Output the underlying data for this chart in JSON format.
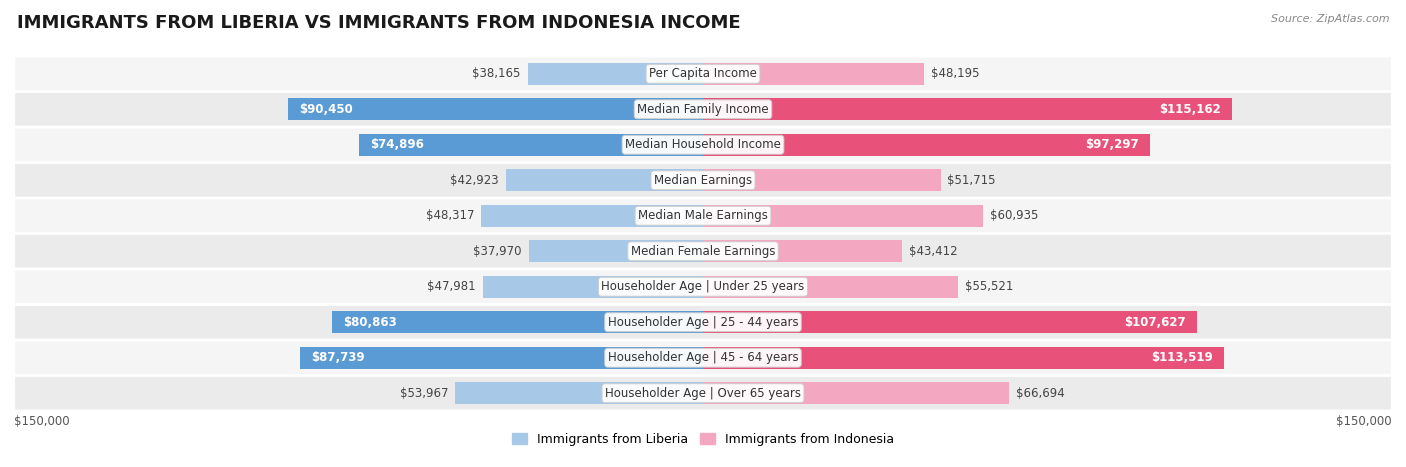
{
  "title": "IMMIGRANTS FROM LIBERIA VS IMMIGRANTS FROM INDONESIA INCOME",
  "source": "Source: ZipAtlas.com",
  "categories": [
    "Per Capita Income",
    "Median Family Income",
    "Median Household Income",
    "Median Earnings",
    "Median Male Earnings",
    "Median Female Earnings",
    "Householder Age | Under 25 years",
    "Householder Age | 25 - 44 years",
    "Householder Age | 45 - 64 years",
    "Householder Age | Over 65 years"
  ],
  "liberia_values": [
    38165,
    90450,
    74896,
    42923,
    48317,
    37970,
    47981,
    80863,
    87739,
    53967
  ],
  "indonesia_values": [
    48195,
    115162,
    97297,
    51715,
    60935,
    43412,
    55521,
    107627,
    113519,
    66694
  ],
  "liberia_labels": [
    "$38,165",
    "$90,450",
    "$74,896",
    "$42,923",
    "$48,317",
    "$37,970",
    "$47,981",
    "$80,863",
    "$87,739",
    "$53,967"
  ],
  "indonesia_labels": [
    "$48,195",
    "$115,162",
    "$97,297",
    "$51,715",
    "$60,935",
    "$43,412",
    "$55,521",
    "$107,627",
    "$113,519",
    "$66,694"
  ],
  "liberia_color_light": "#a8c8e8",
  "liberia_color_dark": "#5b9bd5",
  "indonesia_color_light": "#f4a7c0",
  "indonesia_color_dark": "#e8527a",
  "row_bg_light": "#f5f5f5",
  "row_bg_dark": "#ebebeb",
  "max_value": 150000,
  "xlabel_left": "$150,000",
  "xlabel_right": "$150,000",
  "legend_liberia": "Immigrants from Liberia",
  "legend_indonesia": "Immigrants from Indonesia",
  "title_fontsize": 13,
  "label_fontsize": 8.5,
  "category_fontsize": 8.5,
  "lib_dark_threshold": 65000,
  "ind_dark_threshold": 80000
}
